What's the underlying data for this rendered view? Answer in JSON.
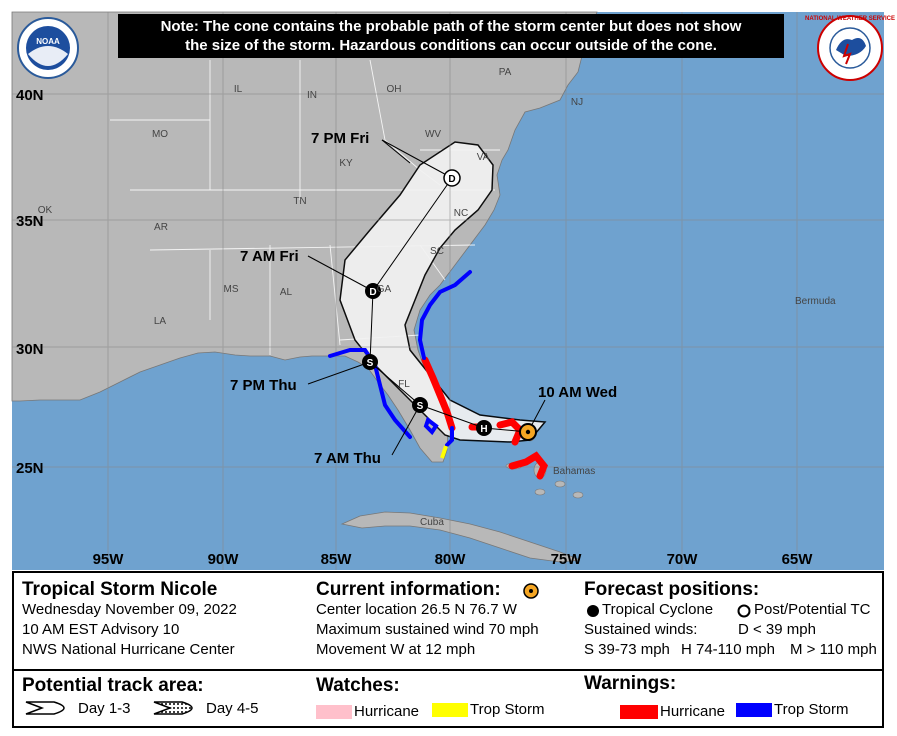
{
  "note": {
    "line1": "Note: The cone contains the probable path of the storm center but does not show",
    "line2": "the size of the storm. Hazardous conditions can occur outside of the cone."
  },
  "logos": {
    "noaa": "NOAA",
    "nws": "NATIONAL WEATHER SERVICE"
  },
  "map": {
    "lat_labels": [
      "40N",
      "35N",
      "30N",
      "25N"
    ],
    "lon_labels": [
      "95W",
      "90W",
      "85W",
      "80W",
      "75W",
      "70W",
      "65W"
    ],
    "states": [
      "PA",
      "NJ",
      "IL",
      "IN",
      "OH",
      "MO",
      "WV",
      "VA",
      "KY",
      "OK",
      "AR",
      "TN",
      "NC",
      "SC",
      "MS",
      "AL",
      "GA",
      "LA",
      "FL"
    ],
    "places": {
      "bermuda": "Bermuda",
      "bahamas": "Bahamas",
      "cuba": "Cuba"
    },
    "forecast_points": [
      {
        "time": "10 AM Wed",
        "symbol": "current"
      },
      {
        "time": "7 AM Thu",
        "symbol": "S"
      },
      {
        "time": "7 PM Thu",
        "symbol": "S"
      },
      {
        "time": "7 AM Fri",
        "symbol": "D"
      },
      {
        "time": "7 PM Fri",
        "symbol": "D"
      }
    ],
    "hurricane_point_symbol": "H",
    "colors": {
      "ocean": "#6fa2cf",
      "land": "#b8b8b8",
      "cone": "#f2f2f2",
      "hurricane_warning": "#ff0000",
      "trop_storm_warning": "#0000ff",
      "trop_storm_watch": "#ffff00",
      "hurricane_watch": "#ffc0cb"
    }
  },
  "legend": {
    "storm_name": "Tropical Storm Nicole",
    "date": "Wednesday November 09, 2022",
    "advisory": "10 AM EST Advisory 10",
    "center": "NWS National Hurricane Center",
    "current_title": "Current information:",
    "location": "Center location 26.5 N 76.7 W",
    "max_wind": "Maximum sustained wind 70 mph",
    "movement": "Movement W at 12 mph",
    "forecast_title": "Forecast positions:",
    "tropical_cyclone": "Tropical Cyclone",
    "post_tc": "Post/Potential TC",
    "sustained_winds": "Sustained winds:",
    "d_label": "D < 39 mph",
    "s_label": "S 39-73 mph",
    "h_label": "H 74-110 mph",
    "m_label": "M > 110 mph",
    "track_title": "Potential track area:",
    "day13": "Day 1-3",
    "day45": "Day 4-5",
    "watches_title": "Watches:",
    "watch_hurricane": "Hurricane",
    "watch_ts": "Trop Storm",
    "warnings_title": "Warnings:",
    "warn_hurricane": "Hurricane",
    "warn_ts": "Trop Storm"
  }
}
